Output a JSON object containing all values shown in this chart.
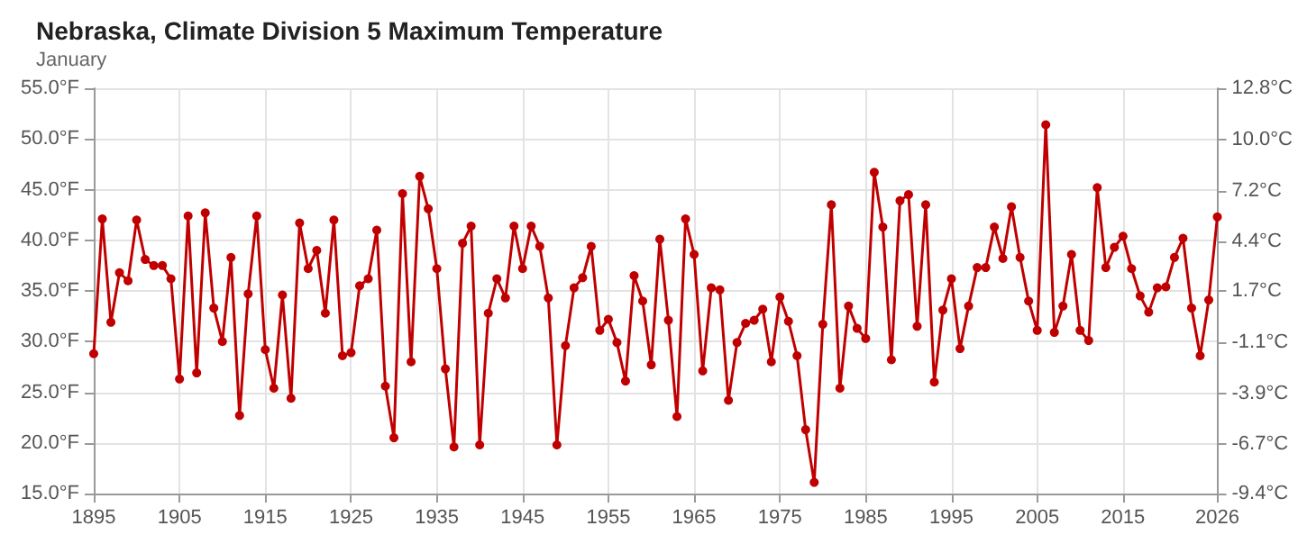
{
  "chart_data": {
    "type": "line",
    "title": "Nebraska, Climate Division 5 Maximum Temperature",
    "subtitle": "January",
    "x": [
      1895,
      1896,
      1897,
      1898,
      1899,
      1900,
      1901,
      1902,
      1903,
      1904,
      1905,
      1906,
      1907,
      1908,
      1909,
      1910,
      1911,
      1912,
      1913,
      1914,
      1915,
      1916,
      1917,
      1918,
      1919,
      1920,
      1921,
      1922,
      1923,
      1924,
      1925,
      1926,
      1927,
      1928,
      1929,
      1930,
      1931,
      1932,
      1933,
      1934,
      1935,
      1936,
      1937,
      1938,
      1939,
      1940,
      1941,
      1942,
      1943,
      1944,
      1945,
      1946,
      1947,
      1948,
      1949,
      1950,
      1951,
      1952,
      1953,
      1954,
      1955,
      1956,
      1957,
      1958,
      1959,
      1960,
      1961,
      1962,
      1963,
      1964,
      1965,
      1966,
      1967,
      1968,
      1969,
      1970,
      1971,
      1972,
      1973,
      1974,
      1975,
      1976,
      1977,
      1978,
      1979,
      1980,
      1981,
      1982,
      1983,
      1984,
      1985,
      1986,
      1987,
      1988,
      1989,
      1990,
      1991,
      1992,
      1993,
      1994,
      1995,
      1996,
      1997,
      1998,
      1999,
      2000,
      2001,
      2002,
      2003,
      2004,
      2005,
      2006,
      2007,
      2008,
      2009,
      2010,
      2011,
      2012,
      2013,
      2014,
      2015,
      2016,
      2017,
      2018,
      2019,
      2020,
      2021,
      2022,
      2023,
      2024,
      2025,
      2026
    ],
    "series": [
      {
        "color": "#c00000",
        "values": [
          28.8,
          42.1,
          31.9,
          36.8,
          36.0,
          42.0,
          38.1,
          37.5,
          37.5,
          36.2,
          26.3,
          42.4,
          26.9,
          42.7,
          33.3,
          30.0,
          38.3,
          22.7,
          34.7,
          42.4,
          29.2,
          25.4,
          34.6,
          24.4,
          41.7,
          37.2,
          39.0,
          32.8,
          42.0,
          28.6,
          28.9,
          35.5,
          36.2,
          41.0,
          25.6,
          20.5,
          44.6,
          28.0,
          46.3,
          43.1,
          37.2,
          27.3,
          19.6,
          39.7,
          41.4,
          19.8,
          32.8,
          36.2,
          34.3,
          41.4,
          37.2,
          41.4,
          39.4,
          34.3,
          19.8,
          29.6,
          35.3,
          36.3,
          39.4,
          31.1,
          32.2,
          29.9,
          26.1,
          36.5,
          34.0,
          27.7,
          40.1,
          32.1,
          22.6,
          42.1,
          38.6,
          27.1,
          35.3,
          35.1,
          24.2,
          29.9,
          31.8,
          32.1,
          33.2,
          28.0,
          34.4,
          32.0,
          28.6,
          21.3,
          16.1,
          31.7,
          43.5,
          25.4,
          33.5,
          31.3,
          30.3,
          46.7,
          41.3,
          28.2,
          43.9,
          44.5,
          31.5,
          43.5,
          26.0,
          33.1,
          36.2,
          29.3,
          33.5,
          37.3,
          37.3,
          41.3,
          38.2,
          43.3,
          38.3,
          34.0,
          31.1,
          51.4,
          30.9,
          33.5,
          38.6,
          31.1,
          30.1,
          45.2,
          37.3,
          39.3,
          40.4,
          37.2,
          34.5,
          32.9,
          35.3,
          35.4,
          38.3,
          40.2,
          33.3,
          28.6,
          34.1,
          42.3
        ]
      }
    ],
    "xlim": [
      1895,
      2026
    ],
    "xticks": [
      1895,
      1905,
      1915,
      1925,
      1935,
      1945,
      1955,
      1965,
      1975,
      1985,
      1995,
      2005,
      2015,
      2026
    ],
    "ylim": [
      15,
      55
    ],
    "yticks": [
      {
        "value": 15,
        "label": "15.0°F"
      },
      {
        "value": 20,
        "label": "20.0°F"
      },
      {
        "value": 25,
        "label": "25.0°F"
      },
      {
        "value": 30,
        "label": "30.0°F"
      },
      {
        "value": 35,
        "label": "35.0°F"
      },
      {
        "value": 40,
        "label": "40.0°F"
      },
      {
        "value": 45,
        "label": "45.0°F"
      },
      {
        "value": 50,
        "label": "50.0°F"
      },
      {
        "value": 55,
        "label": "55.0°F"
      }
    ],
    "y2lim": [
      -9.4,
      12.8
    ],
    "y2ticks": [
      {
        "value": -9.4,
        "label": "-9.4°C"
      },
      {
        "value": -6.7,
        "label": "-6.7°C"
      },
      {
        "value": -3.9,
        "label": "-3.9°C"
      },
      {
        "value": -1.1,
        "label": "-1.1°C"
      },
      {
        "value": 1.7,
        "label": "1.7°C"
      },
      {
        "value": 4.4,
        "label": "4.4°C"
      },
      {
        "value": 7.2,
        "label": "7.2°C"
      },
      {
        "value": 10.0,
        "label": "10.0°C"
      },
      {
        "value": 12.8,
        "label": "12.8°C"
      }
    ],
    "grid": true,
    "marker": "circle",
    "line_style": "solid"
  }
}
